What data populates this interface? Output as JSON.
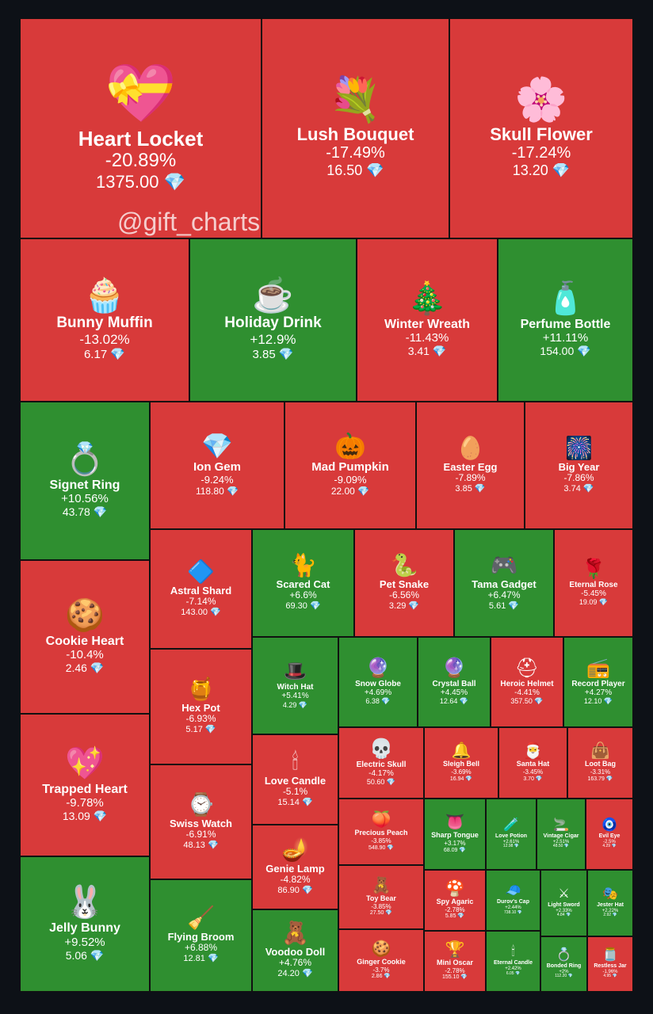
{
  "watermark": "@gift_charts",
  "colors": {
    "negative": "#d83a3a",
    "positive": "#2f8f30",
    "background": "#0d1117",
    "gem": "#7fd3ff"
  },
  "chart_data": {
    "type": "treemap",
    "items": [
      {
        "name": "Heart Locket",
        "change": "-20.89%",
        "price": "1375.00",
        "icon": "heart-locket-icon"
      },
      {
        "name": "Lush Bouquet",
        "change": "-17.49%",
        "price": "16.50",
        "icon": "bouquet-icon"
      },
      {
        "name": "Skull Flower",
        "change": "-17.24%",
        "price": "13.20",
        "icon": "skull-flower-icon"
      },
      {
        "name": "Bunny Muffin",
        "change": "-13.02%",
        "price": "6.17",
        "icon": "bunny-muffin-icon"
      },
      {
        "name": "Holiday Drink",
        "change": "+12.9%",
        "price": "3.85",
        "icon": "holiday-drink-icon"
      },
      {
        "name": "Winter Wreath",
        "change": "-11.43%",
        "price": "3.41",
        "icon": "wreath-icon"
      },
      {
        "name": "Perfume Bottle",
        "change": "+11.11%",
        "price": "154.00",
        "icon": "perfume-icon"
      },
      {
        "name": "Signet Ring",
        "change": "+10.56%",
        "price": "43.78",
        "icon": "ring-icon"
      },
      {
        "name": "Ion Gem",
        "change": "-9.24%",
        "price": "118.80",
        "icon": "gem-icon"
      },
      {
        "name": "Mad Pumpkin",
        "change": "-9.09%",
        "price": "22.00",
        "icon": "pumpkin-icon"
      },
      {
        "name": "Easter Egg",
        "change": "-7.89%",
        "price": "3.85",
        "icon": "egg-icon"
      },
      {
        "name": "Big Year",
        "change": "-7.86%",
        "price": "3.74",
        "icon": "big-year-icon"
      },
      {
        "name": "Astral Shard",
        "change": "-7.14%",
        "price": "143.00",
        "icon": "shard-icon"
      },
      {
        "name": "Scared Cat",
        "change": "+6.6%",
        "price": "69.30",
        "icon": "cat-icon"
      },
      {
        "name": "Pet Snake",
        "change": "-6.56%",
        "price": "3.29",
        "icon": "snake-icon"
      },
      {
        "name": "Tama Gadget",
        "change": "+6.47%",
        "price": "5.61",
        "icon": "gadget-icon"
      },
      {
        "name": "Eternal Rose",
        "change": "-5.45%",
        "price": "19.09",
        "icon": "rose-icon"
      },
      {
        "name": "Cookie Heart",
        "change": "-10.4%",
        "price": "2.46",
        "icon": "cookie-heart-icon"
      },
      {
        "name": "Hex Pot",
        "change": "-6.93%",
        "price": "5.17",
        "icon": "hex-pot-icon"
      },
      {
        "name": "Witch Hat",
        "change": "+5.41%",
        "price": "4.29",
        "icon": "witch-hat-icon"
      },
      {
        "name": "Snow Globe",
        "change": "+4.69%",
        "price": "6.38",
        "icon": "snow-globe-icon"
      },
      {
        "name": "Crystal Ball",
        "change": "+4.45%",
        "price": "12.64",
        "icon": "crystal-ball-icon"
      },
      {
        "name": "Heroic Helmet",
        "change": "-4.41%",
        "price": "357.50",
        "icon": "helmet-icon"
      },
      {
        "name": "Record Player",
        "change": "+4.27%",
        "price": "12.10",
        "icon": "record-player-icon"
      },
      {
        "name": "Trapped Heart",
        "change": "-9.78%",
        "price": "13.09",
        "icon": "trapped-heart-icon"
      },
      {
        "name": "Swiss Watch",
        "change": "-6.91%",
        "price": "48.13",
        "icon": "watch-icon"
      },
      {
        "name": "Love Candle",
        "change": "-5.1%",
        "price": "15.14",
        "icon": "candle-icon"
      },
      {
        "name": "Electric Skull",
        "change": "-4.17%",
        "price": "50.60",
        "icon": "skull-icon"
      },
      {
        "name": "Sleigh Bell",
        "change": "-3.69%",
        "price": "16.94",
        "icon": "bell-icon"
      },
      {
        "name": "Santa Hat",
        "change": "-3.45%",
        "price": "3.70",
        "icon": "santa-hat-icon"
      },
      {
        "name": "Loot Bag",
        "change": "-3.31%",
        "price": "163.79",
        "icon": "loot-bag-icon"
      },
      {
        "name": "Genie Lamp",
        "change": "-4.82%",
        "price": "86.90",
        "icon": "lamp-icon"
      },
      {
        "name": "Precious Peach",
        "change": "-3.85%",
        "price": "548.90",
        "icon": "peach-icon"
      },
      {
        "name": "Sharp Tongue",
        "change": "+3.17%",
        "price": "68.09",
        "icon": "tongue-icon"
      },
      {
        "name": "Love Potion",
        "change": "+2.61%",
        "price": "12.98",
        "icon": "potion-icon"
      },
      {
        "name": "Vintage Cigar",
        "change": "+2.51%",
        "price": "48.50",
        "icon": "cigar-icon"
      },
      {
        "name": "Evil Eye",
        "change": "-2.5%",
        "price": "4.29",
        "icon": "evil-eye-icon"
      },
      {
        "name": "Jelly Bunny",
        "change": "+9.52%",
        "price": "5.06",
        "icon": "jelly-bunny-icon"
      },
      {
        "name": "Flying Broom",
        "change": "+6.88%",
        "price": "12.81",
        "icon": "broom-icon"
      },
      {
        "name": "Voodoo Doll",
        "change": "+4.76%",
        "price": "24.20",
        "icon": "voodoo-doll-icon"
      },
      {
        "name": "Toy Bear",
        "change": "-3.85%",
        "price": "27.50",
        "icon": "toy-bear-icon"
      },
      {
        "name": "Spy Agaric",
        "change": "-2.78%",
        "price": "5.85",
        "icon": "mushroom-icon"
      },
      {
        "name": "Durov's Cap",
        "change": "+2.44%",
        "price": "738.10",
        "icon": "cap-icon"
      },
      {
        "name": "Light Sword",
        "change": "+2.33%",
        "price": "4.84",
        "icon": "sword-icon"
      },
      {
        "name": "Jester Hat",
        "change": "+2.22%",
        "price": "2.92",
        "icon": "jester-hat-icon"
      },
      {
        "name": "Ginger Cookie",
        "change": "-3.7%",
        "price": "2.86",
        "icon": "ginger-cookie-icon"
      },
      {
        "name": "Mini Oscar",
        "change": "-2.78%",
        "price": "155.10",
        "icon": "oscar-icon"
      },
      {
        "name": "Eternal Candle",
        "change": "+2.42%",
        "price": "6.05",
        "icon": "eternal-candle-icon"
      },
      {
        "name": "Bonded Ring",
        "change": "+2%",
        "price": "112.20",
        "icon": "bonded-ring-icon"
      },
      {
        "name": "Restless Jar",
        "change": "-1.96%",
        "price": "4.95",
        "icon": "jar-icon"
      }
    ]
  }
}
